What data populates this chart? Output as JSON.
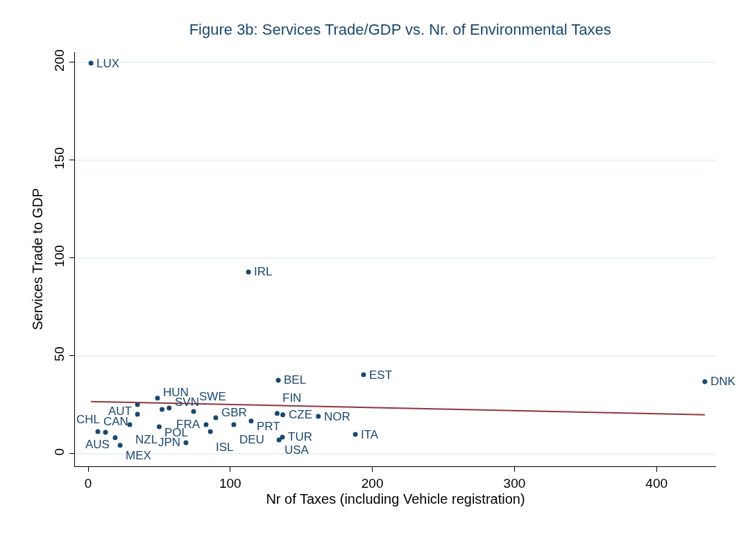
{
  "chart_data": {
    "type": "scatter",
    "title": "Figure 3b: Services Trade/GDP vs. Nr. of Environmental Taxes",
    "xlabel": "Nr of Taxes (including Vehicle registration)",
    "ylabel": "Services Trade to GDP",
    "xlim": [
      -9.3,
      441.9
    ],
    "ylim": [
      -6.4,
      205.3
    ],
    "xticks": [
      0,
      100,
      200,
      300,
      400
    ],
    "yticks": [
      0,
      50,
      100,
      150,
      200
    ],
    "grid": "y",
    "marker": "circle",
    "series": [
      {
        "color": "#1a476f",
        "x": [
          2,
          112.8,
          133.8,
          193.8,
          434,
          188,
          136.7,
          134.3,
          162,
          137,
          133,
          89.8,
          114.7,
          102.5,
          83,
          86,
          74.2,
          68.8,
          48.8,
          34.7,
          57,
          52,
          34.7,
          29.3,
          50,
          6.8,
          12.2,
          19,
          22.5
        ],
        "values": [
          199.6,
          92.9,
          37.6,
          40.4,
          36.9,
          9.9,
          8.5,
          7.1,
          19.1,
          19.9,
          20.6,
          18.4,
          16.7,
          14.9,
          14.9,
          11.3,
          21.6,
          5.7,
          28.4,
          25.2,
          23.4,
          22.7,
          20.2,
          14.9,
          13.8,
          11.3,
          11,
          8.2,
          4.3
        ]
      },
      {
        "type": "line",
        "color": "#90353b",
        "marker": "none",
        "x": [
          2,
          434
        ],
        "values": [
          26.7,
          19.9
        ]
      }
    ],
    "annotations": [
      {
        "text": "LUX",
        "x": 2,
        "y": 199.6
      },
      {
        "text": "IRL",
        "x": 112.8,
        "y": 92.9
      },
      {
        "text": "BEL",
        "x": 133.8,
        "y": 37.6
      },
      {
        "text": "EST",
        "x": 193.8,
        "y": 40.4
      },
      {
        "text": "DNK",
        "x": 434,
        "y": 36.9
      },
      {
        "text": "ITA",
        "x": 188,
        "y": 9.9
      },
      {
        "text": "TUR",
        "x": 136.7,
        "y": 8.5
      },
      {
        "text": "USA",
        "x": 134.3,
        "y": 7.1
      },
      {
        "text": "NOR",
        "x": 162,
        "y": 19.1
      },
      {
        "text": "CZE",
        "x": 137,
        "y": 19.9
      },
      {
        "text": "FIN",
        "x": 133,
        "y": 20.6
      },
      {
        "text": "GBR",
        "x": 89.8,
        "y": 18.4
      },
      {
        "text": "PRT",
        "x": 114.7,
        "y": 16.7
      },
      {
        "text": "DEU",
        "x": 102.5,
        "y": 14.9
      },
      {
        "text": "FRA",
        "x": 83,
        "y": 14.9
      },
      {
        "text": "ISL",
        "x": 86,
        "y": 11.3
      },
      {
        "text": "SWE",
        "x": 74.2,
        "y": 21.6
      },
      {
        "text": "JPN",
        "x": 68.8,
        "y": 5.7
      },
      {
        "text": "HUN",
        "x": 48.8,
        "y": 28.4
      },
      {
        "text": "AUT",
        "x": 34.7,
        "y": 25.2
      },
      {
        "text": "SVN",
        "x": 57,
        "y": 23.4
      },
      {
        "text": "NZL",
        "x": 29.3,
        "y": 14.9
      },
      {
        "text": "POL",
        "x": 50,
        "y": 13.8
      },
      {
        "text": "CAN",
        "x": 6.8,
        "y": 11.3
      },
      {
        "text": "CHL",
        "x": 12.2,
        "y": 11
      },
      {
        "text": "AUS",
        "x": 19,
        "y": 8.2
      },
      {
        "text": "MEX",
        "x": 22.5,
        "y": 4.3
      }
    ]
  }
}
